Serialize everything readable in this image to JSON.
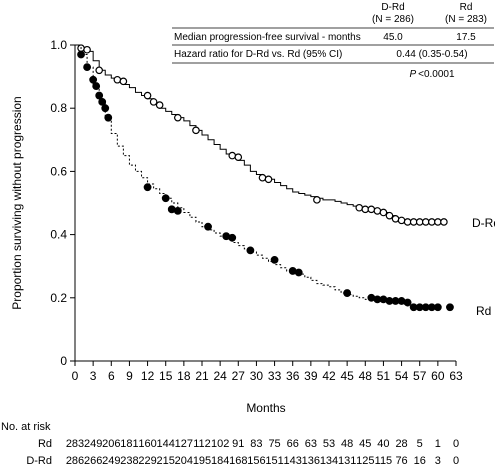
{
  "chart_data": {
    "type": "line",
    "title": "",
    "xlabel": "Months",
    "ylabel": "Proportion surviving without progression",
    "xlim": [
      0,
      63
    ],
    "ylim": [
      0,
      1.0
    ],
    "x_ticks": [
      0,
      3,
      6,
      9,
      12,
      15,
      18,
      21,
      24,
      27,
      30,
      33,
      36,
      39,
      42,
      45,
      48,
      51,
      54,
      57,
      60,
      63
    ],
    "y_ticks": [
      "0",
      "0.2",
      "0.4",
      "0.6",
      "0.8",
      "1.0"
    ],
    "grid": false,
    "series": [
      {
        "name": "D-Rd",
        "color": "#000000",
        "line_style": "solid",
        "marker": "open-circle",
        "points": [
          [
            0,
            1.0
          ],
          [
            1,
            0.99
          ],
          [
            2,
            0.98
          ],
          [
            3,
            0.95
          ],
          [
            4,
            0.92
          ],
          [
            5,
            0.905
          ],
          [
            6,
            0.895
          ],
          [
            7,
            0.885
          ],
          [
            8,
            0.875
          ],
          [
            9,
            0.865
          ],
          [
            10,
            0.85
          ],
          [
            11,
            0.84
          ],
          [
            12,
            0.83
          ],
          [
            13,
            0.815
          ],
          [
            14,
            0.8
          ],
          [
            15,
            0.79
          ],
          [
            16,
            0.78
          ],
          [
            17,
            0.77
          ],
          [
            18,
            0.76
          ],
          [
            19,
            0.745
          ],
          [
            20,
            0.73
          ],
          [
            21,
            0.715
          ],
          [
            22,
            0.7
          ],
          [
            23,
            0.685
          ],
          [
            24,
            0.67
          ],
          [
            25,
            0.655
          ],
          [
            26,
            0.645
          ],
          [
            27,
            0.635
          ],
          [
            28,
            0.62
          ],
          [
            29,
            0.6
          ],
          [
            30,
            0.59
          ],
          [
            31,
            0.58
          ],
          [
            32,
            0.575
          ],
          [
            33,
            0.565
          ],
          [
            34,
            0.555
          ],
          [
            35,
            0.545
          ],
          [
            36,
            0.535
          ],
          [
            37,
            0.53
          ],
          [
            38,
            0.525
          ],
          [
            39,
            0.52
          ],
          [
            40,
            0.515
          ],
          [
            41,
            0.51
          ],
          [
            42,
            0.51
          ],
          [
            43,
            0.505
          ],
          [
            44,
            0.5
          ],
          [
            45,
            0.495
          ],
          [
            46,
            0.49
          ],
          [
            47,
            0.485
          ],
          [
            48,
            0.48
          ],
          [
            49,
            0.475
          ],
          [
            50,
            0.475
          ],
          [
            51,
            0.47
          ],
          [
            52,
            0.46
          ],
          [
            53,
            0.45
          ],
          [
            54,
            0.445
          ],
          [
            55,
            0.44
          ],
          [
            56,
            0.44
          ],
          [
            57,
            0.44
          ],
          [
            58,
            0.44
          ],
          [
            59,
            0.44
          ],
          [
            60,
            0.44
          ]
        ],
        "markers": [
          [
            1,
            0.99
          ],
          [
            2,
            0.985
          ],
          [
            4,
            0.92
          ],
          [
            7,
            0.89
          ],
          [
            8,
            0.885
          ],
          [
            12,
            0.84
          ],
          [
            13,
            0.82
          ],
          [
            14,
            0.81
          ],
          [
            17,
            0.77
          ],
          [
            20,
            0.73
          ],
          [
            26,
            0.65
          ],
          [
            27,
            0.645
          ],
          [
            31,
            0.58
          ],
          [
            32,
            0.575
          ],
          [
            40,
            0.51
          ],
          [
            47,
            0.485
          ],
          [
            48,
            0.48
          ],
          [
            49,
            0.48
          ],
          [
            50,
            0.475
          ],
          [
            51,
            0.47
          ],
          [
            52,
            0.46
          ],
          [
            53,
            0.45
          ],
          [
            54,
            0.445
          ],
          [
            55,
            0.44
          ],
          [
            56,
            0.44
          ],
          [
            57,
            0.44
          ],
          [
            58,
            0.44
          ],
          [
            59,
            0.44
          ],
          [
            60,
            0.44
          ],
          [
            61,
            0.44
          ]
        ],
        "label": "D-Rd"
      },
      {
        "name": "Rd",
        "color": "#000000",
        "line_style": "dashed",
        "marker": "filled-circle",
        "points": [
          [
            0,
            1.0
          ],
          [
            1,
            0.97
          ],
          [
            2,
            0.93
          ],
          [
            3,
            0.87
          ],
          [
            4,
            0.82
          ],
          [
            5,
            0.77
          ],
          [
            6,
            0.72
          ],
          [
            7,
            0.68
          ],
          [
            8,
            0.65
          ],
          [
            9,
            0.62
          ],
          [
            10,
            0.6
          ],
          [
            11,
            0.58
          ],
          [
            12,
            0.56
          ],
          [
            13,
            0.545
          ],
          [
            14,
            0.53
          ],
          [
            15,
            0.515
          ],
          [
            16,
            0.5
          ],
          [
            17,
            0.485
          ],
          [
            18,
            0.47
          ],
          [
            19,
            0.455
          ],
          [
            20,
            0.44
          ],
          [
            21,
            0.425
          ],
          [
            22,
            0.415
          ],
          [
            23,
            0.405
          ],
          [
            24,
            0.395
          ],
          [
            25,
            0.385
          ],
          [
            26,
            0.375
          ],
          [
            27,
            0.365
          ],
          [
            28,
            0.355
          ],
          [
            29,
            0.345
          ],
          [
            30,
            0.335
          ],
          [
            31,
            0.325
          ],
          [
            32,
            0.315
          ],
          [
            33,
            0.305
          ],
          [
            34,
            0.295
          ],
          [
            35,
            0.285
          ],
          [
            36,
            0.28
          ],
          [
            37,
            0.275
          ],
          [
            38,
            0.265
          ],
          [
            39,
            0.255
          ],
          [
            40,
            0.245
          ],
          [
            41,
            0.24
          ],
          [
            42,
            0.235
          ],
          [
            43,
            0.225
          ],
          [
            44,
            0.215
          ],
          [
            45,
            0.21
          ],
          [
            46,
            0.205
          ],
          [
            47,
            0.2
          ],
          [
            48,
            0.195
          ],
          [
            49,
            0.195
          ],
          [
            50,
            0.19
          ],
          [
            51,
            0.19
          ],
          [
            52,
            0.19
          ],
          [
            53,
            0.185
          ],
          [
            54,
            0.18
          ],
          [
            55,
            0.175
          ],
          [
            56,
            0.17
          ],
          [
            57,
            0.165
          ],
          [
            58,
            0.165
          ],
          [
            59,
            0.165
          ],
          [
            60,
            0.165
          ]
        ],
        "markers": [
          [
            1,
            0.97
          ],
          [
            2,
            0.93
          ],
          [
            3,
            0.89
          ],
          [
            3.5,
            0.87
          ],
          [
            4,
            0.84
          ],
          [
            4.5,
            0.82
          ],
          [
            5,
            0.8
          ],
          [
            5.5,
            0.77
          ],
          [
            12,
            0.55
          ],
          [
            15,
            0.515
          ],
          [
            16,
            0.48
          ],
          [
            17,
            0.475
          ],
          [
            22,
            0.425
          ],
          [
            25,
            0.395
          ],
          [
            26,
            0.39
          ],
          [
            29,
            0.35
          ],
          [
            33,
            0.32
          ],
          [
            36,
            0.285
          ],
          [
            37,
            0.28
          ],
          [
            45,
            0.215
          ],
          [
            49,
            0.2
          ],
          [
            50,
            0.195
          ],
          [
            51,
            0.195
          ],
          [
            52,
            0.19
          ],
          [
            53,
            0.19
          ],
          [
            54,
            0.19
          ],
          [
            55,
            0.185
          ],
          [
            56,
            0.17
          ],
          [
            57,
            0.17
          ],
          [
            58,
            0.17
          ],
          [
            59,
            0.17
          ],
          [
            60,
            0.17
          ],
          [
            62,
            0.17
          ]
        ],
        "label": "Rd"
      }
    ],
    "summary_table": {
      "col_headers": [
        {
          "line1": "D-Rd",
          "line2": "(N = 286)"
        },
        {
          "line1": "Rd",
          "line2": "(N = 283)"
        }
      ],
      "rows": [
        {
          "label": "Median progression-free survival - months",
          "values": [
            "45.0",
            "17.5"
          ]
        },
        {
          "label": "Hazard ratio for D-Rd vs. Rd (95% CI)",
          "value": "0.44 (0.35-0.54)"
        }
      ],
      "p_label": "P",
      "p_value": "<0.0001"
    },
    "at_risk": {
      "title": "No. at risk",
      "rows": [
        {
          "label": "Rd",
          "counts": [
            "283",
            "249",
            "206",
            "181",
            "160",
            "144",
            "127",
            "112",
            "102",
            "91",
            "83",
            "75",
            "66",
            "63",
            "53",
            "48",
            "45",
            "40",
            "28",
            "5",
            "1",
            "0"
          ]
        },
        {
          "label": "D-Rd",
          "counts": [
            "286",
            "266",
            "249",
            "238",
            "229",
            "215",
            "204",
            "195",
            "184",
            "168",
            "156",
            "151",
            "143",
            "136",
            "134",
            "131",
            "125",
            "115",
            "76",
            "16",
            "3",
            "0"
          ]
        }
      ]
    }
  }
}
